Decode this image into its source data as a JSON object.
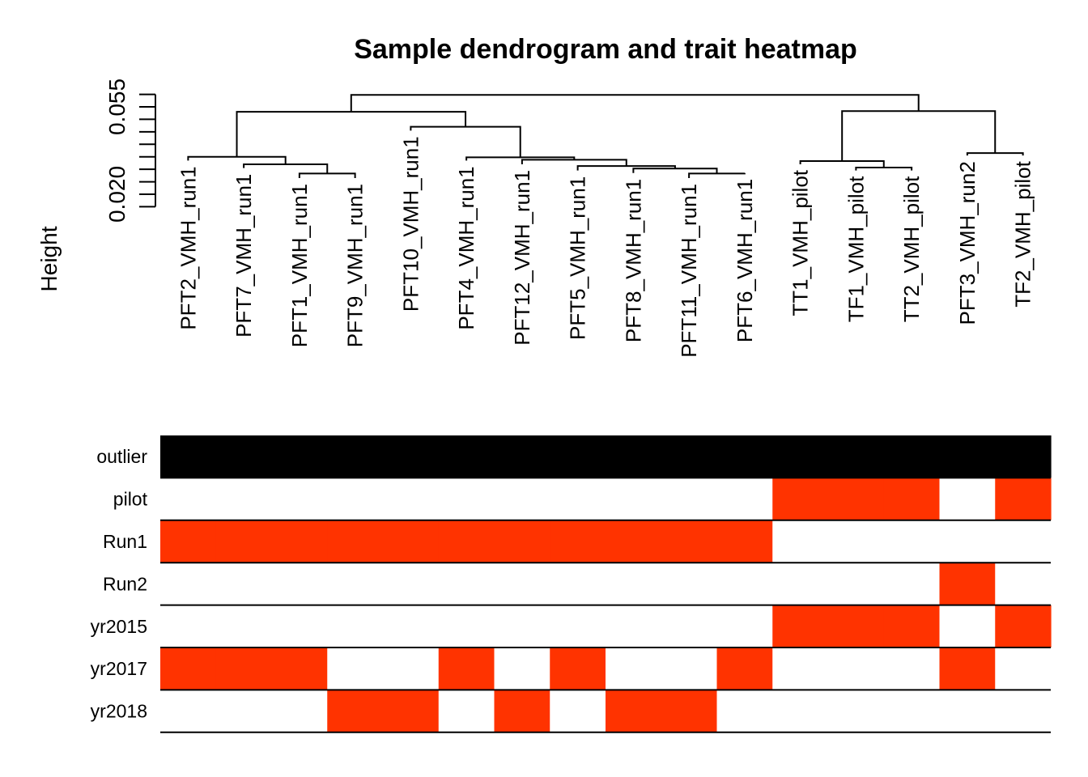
{
  "chart_data": {
    "type": "heatmap",
    "title": "Sample dendrogram and trait heatmap",
    "ylabel": "Height",
    "y_tick_labels": [
      "0.020",
      "0.055"
    ],
    "y_ticks": [
      0.015,
      0.02,
      0.025,
      0.03,
      0.035,
      0.04,
      0.045,
      0.05,
      0.055,
      0.06
    ],
    "samples": [
      "PFT2_VMH_run1",
      "PFT7_VMH_run1",
      "PFT1_VMH_run1",
      "PFT9_VMH_run1",
      "PFT10_VMH_run1",
      "PFT4_VMH_run1",
      "PFT12_VMH_run1",
      "PFT5_VMH_run1",
      "PFT8_VMH_run1",
      "PFT11_VMH_run1",
      "PFT6_VMH_run1",
      "TT1_VMH_pilot",
      "TF1_VMH_pilot",
      "TT2_VMH_pilot",
      "PFT3_VMH_run2",
      "TF2_VMH_pilot"
    ],
    "leaf_heights": [
      0.0335,
      0.0305,
      0.0265,
      0.0265,
      0.0455,
      0.0335,
      0.032,
      0.0295,
      0.0285,
      0.0265,
      0.0285,
      0.032,
      0.0295,
      0.0295,
      0.0355,
      0.0355
    ],
    "merges": [
      {
        "id": "m1",
        "left": "PFT1_VMH_run1",
        "right": "PFT9_VMH_run1",
        "height": 0.0283
      },
      {
        "id": "m2",
        "left": "PFT7_VMH_run1",
        "right": "m1",
        "height": 0.032
      },
      {
        "id": "m3",
        "left": "PFT2_VMH_run1",
        "right": "m2",
        "height": 0.035
      },
      {
        "id": "m4",
        "left": "PFT11_VMH_run1",
        "right": "PFT6_VMH_run1",
        "height": 0.0283
      },
      {
        "id": "m5",
        "left": "PFT8_VMH_run1",
        "right": "m4",
        "height": 0.0303
      },
      {
        "id": "m6",
        "left": "PFT5_VMH_run1",
        "right": "m5",
        "height": 0.0313
      },
      {
        "id": "m7",
        "left": "PFT12_VMH_run1",
        "right": "m6",
        "height": 0.0338
      },
      {
        "id": "m8",
        "left": "PFT4_VMH_run1",
        "right": "m7",
        "height": 0.0348
      },
      {
        "id": "m9",
        "left": "PFT10_VMH_run1",
        "right": "m8",
        "height": 0.047
      },
      {
        "id": "m10",
        "left": "m3",
        "right": "m9",
        "height": 0.053
      },
      {
        "id": "m11",
        "left": "TF1_VMH_pilot",
        "right": "TT2_VMH_pilot",
        "height": 0.0307
      },
      {
        "id": "m12",
        "left": "TT1_VMH_pilot",
        "right": "m11",
        "height": 0.0333
      },
      {
        "id": "m13",
        "left": "PFT3_VMH_run2",
        "right": "TF2_VMH_pilot",
        "height": 0.0365
      },
      {
        "id": "m14",
        "left": "m12",
        "right": "m13",
        "height": 0.0533
      },
      {
        "id": "m15",
        "left": "m10",
        "right": "m14",
        "height": 0.0598
      }
    ],
    "traits": [
      "outlier",
      "pilot",
      "Run1",
      "Run2",
      "yr2015",
      "yr2017",
      "yr2018"
    ],
    "matrix": [
      [
        1,
        1,
        1,
        1,
        1,
        1,
        1,
        1,
        1,
        1,
        1,
        1,
        1,
        1,
        1,
        1
      ],
      [
        0,
        0,
        0,
        0,
        0,
        0,
        0,
        0,
        0,
        0,
        0,
        1,
        1,
        1,
        0,
        1
      ],
      [
        1,
        1,
        1,
        1,
        1,
        1,
        1,
        1,
        1,
        1,
        1,
        0,
        0,
        0,
        0,
        0
      ],
      [
        0,
        0,
        0,
        0,
        0,
        0,
        0,
        0,
        0,
        0,
        0,
        0,
        0,
        0,
        1,
        0
      ],
      [
        0,
        0,
        0,
        0,
        0,
        0,
        0,
        0,
        0,
        0,
        0,
        1,
        1,
        1,
        0,
        1
      ],
      [
        1,
        1,
        1,
        0,
        0,
        1,
        0,
        1,
        0,
        0,
        1,
        0,
        0,
        0,
        1,
        0
      ],
      [
        0,
        0,
        0,
        1,
        1,
        0,
        1,
        0,
        1,
        1,
        0,
        0,
        0,
        0,
        0,
        0
      ]
    ],
    "colors": {
      "outlier_on": "#000000",
      "trait_on": "#ff3300",
      "off": "#ffffff",
      "line": "#000000"
    }
  }
}
